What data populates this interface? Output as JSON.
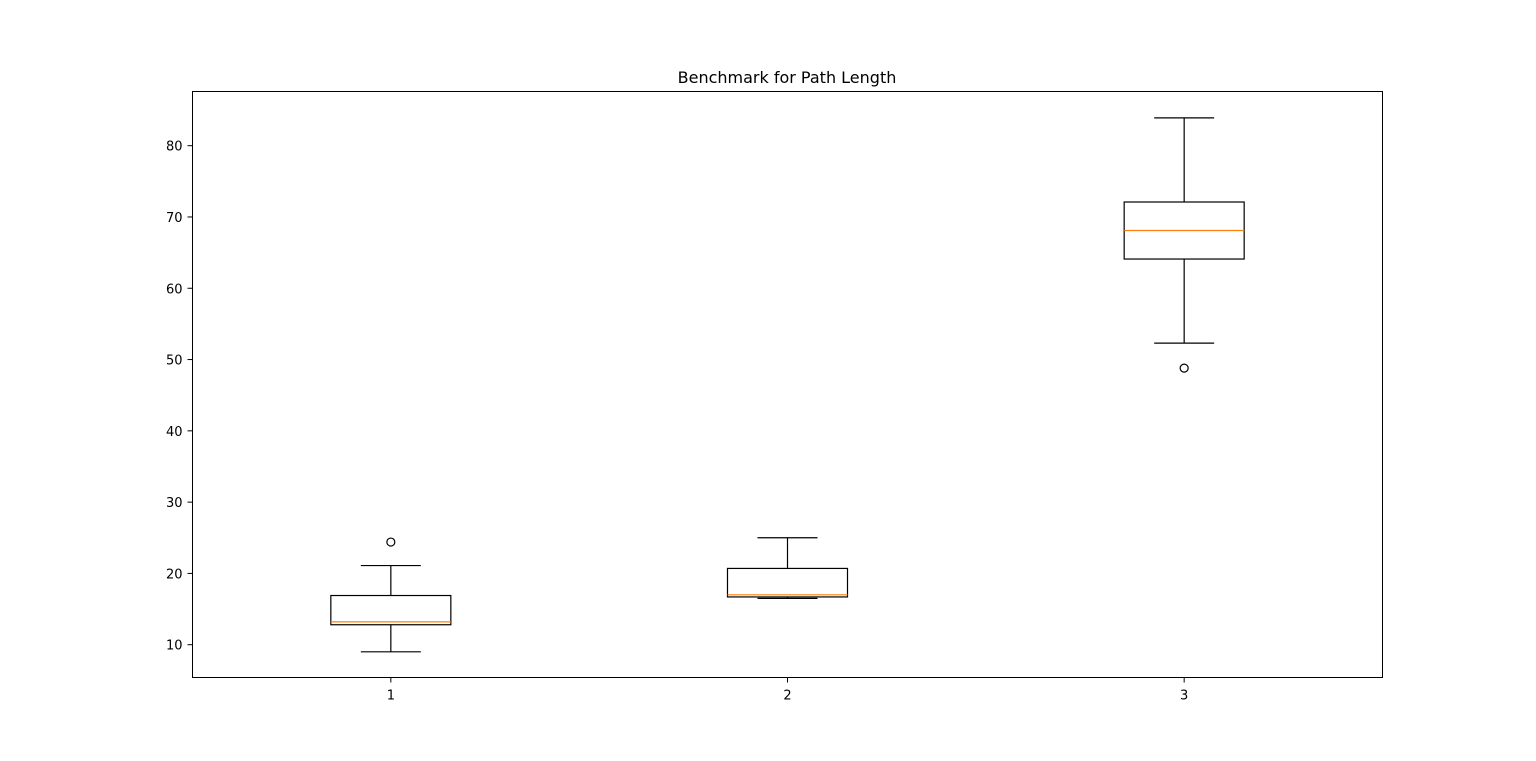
{
  "chart_data": {
    "type": "boxplot",
    "title": "Benchmark for Path Length",
    "xlabel": "",
    "ylabel": "",
    "categories": [
      "1",
      "2",
      "3"
    ],
    "ylim": [
      5.4,
      87.6
    ],
    "yticks": [
      10,
      20,
      30,
      40,
      50,
      60,
      70,
      80
    ],
    "grid": false,
    "legend": "none",
    "box_color": "#000000",
    "median_color": "#ff7f0e",
    "boxes": [
      {
        "category": "1",
        "whisker_low": 9.0,
        "q1": 12.8,
        "median": 13.2,
        "q3": 16.9,
        "whisker_high": 21.1,
        "outliers": [
          24.4
        ]
      },
      {
        "category": "2",
        "whisker_low": 16.5,
        "q1": 16.7,
        "median": 17.0,
        "q3": 20.7,
        "whisker_high": 25.0,
        "outliers": []
      },
      {
        "category": "3",
        "whisker_low": 52.3,
        "q1": 64.1,
        "median": 68.1,
        "q3": 72.1,
        "whisker_high": 83.9,
        "outliers": [
          48.8
        ]
      }
    ]
  }
}
